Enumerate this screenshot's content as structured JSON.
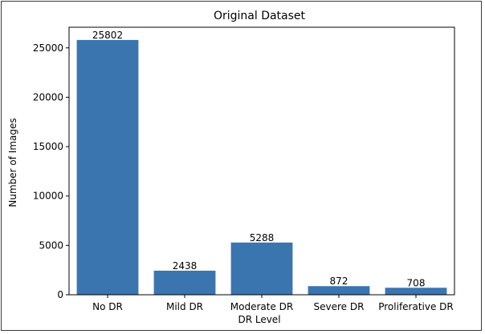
{
  "chart_data": {
    "type": "bar",
    "title": "Original Dataset",
    "xlabel": "DR Level",
    "ylabel": "Number of Images",
    "categories": [
      "No DR",
      "Mild DR",
      "Moderate DR",
      "Severe DR",
      "Proliferative DR"
    ],
    "values": [
      25802,
      2438,
      5288,
      872,
      708
    ],
    "data_labels": [
      "25802",
      "2438",
      "5288",
      "872",
      "708"
    ],
    "ylim": [
      0,
      27092
    ],
    "yticks": [
      0,
      5000,
      10000,
      15000,
      20000,
      25000
    ],
    "ytick_labels": [
      "0",
      "5000",
      "10000",
      "15000",
      "20000",
      "25000"
    ],
    "bar_color": "#3a75b0",
    "grid": false,
    "legend": "none"
  }
}
